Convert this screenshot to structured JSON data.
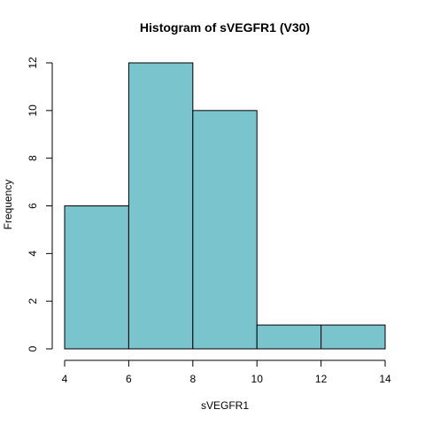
{
  "chart_data": {
    "type": "bar",
    "title": "Histogram of sVEGFR1 (V30)",
    "xlabel": "sVEGFR1",
    "ylabel": "Frequency",
    "bins": [
      {
        "start": 4,
        "end": 6,
        "count": 6
      },
      {
        "start": 6,
        "end": 8,
        "count": 12
      },
      {
        "start": 8,
        "end": 10,
        "count": 10
      },
      {
        "start": 10,
        "end": 12,
        "count": 1
      },
      {
        "start": 12,
        "end": 14,
        "count": 1
      }
    ],
    "xlim": [
      4,
      14
    ],
    "ylim": [
      0,
      12
    ],
    "xticks": [
      4,
      6,
      8,
      10,
      12,
      14
    ],
    "yticks": [
      0,
      2,
      4,
      6,
      8,
      10,
      12
    ],
    "bar_color": "#7ac5cd",
    "grid": false
  }
}
